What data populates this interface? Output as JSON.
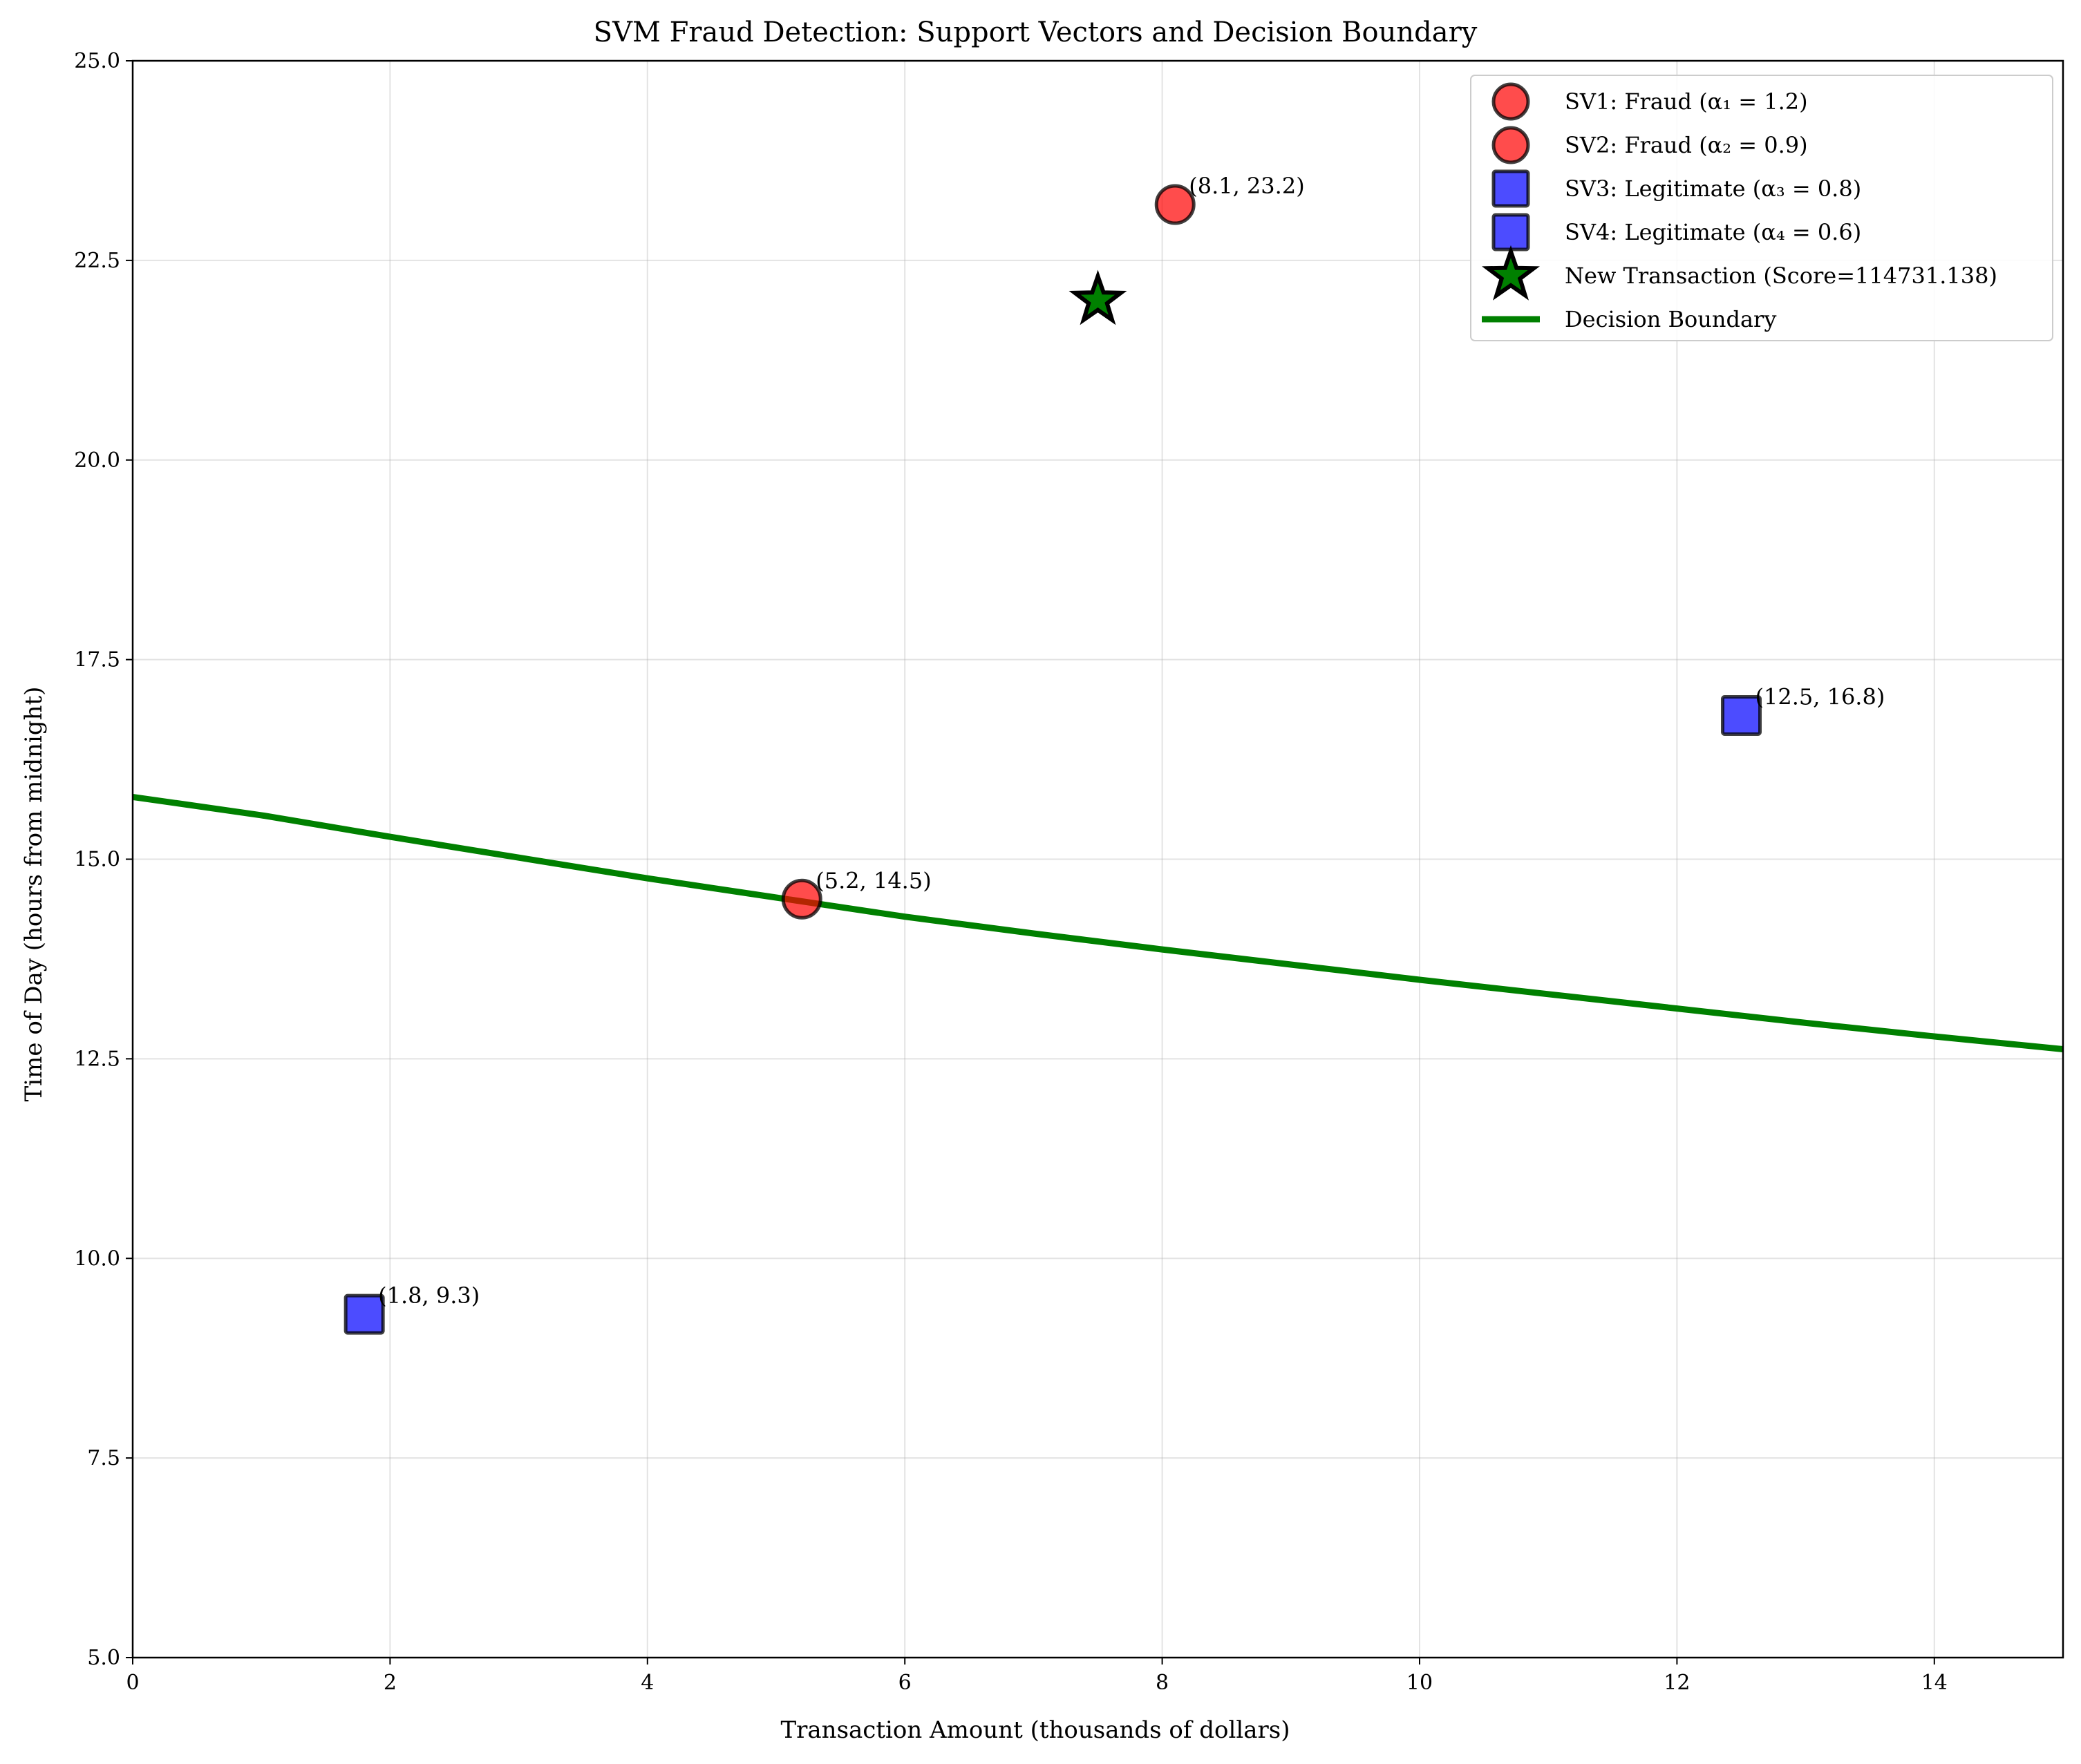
{
  "chart_data": {
    "type": "scatter",
    "title": "SVM Fraud Detection: Support Vectors and Decision Boundary",
    "xlabel": "Transaction Amount (thousands of dollars)",
    "ylabel": "Time of Day (hours from midnight)",
    "xlim": [
      0,
      15
    ],
    "ylim": [
      5,
      25
    ],
    "xticks": [
      0,
      2,
      4,
      6,
      8,
      10,
      12,
      14
    ],
    "xtick_labels": [
      "0",
      "2",
      "4",
      "6",
      "8",
      "10",
      "12",
      "14"
    ],
    "yticks": [
      5,
      7.5,
      10,
      12.5,
      15,
      17.5,
      20,
      22.5,
      25
    ],
    "ytick_labels": [
      "5.0",
      "7.5",
      "10.0",
      "12.5",
      "15.0",
      "17.5",
      "20.0",
      "22.5",
      "25.0"
    ],
    "grid": true,
    "legend_position": "top-right",
    "series": [
      {
        "name": "SV1: Fraud (α₁ = 1.2)",
        "marker": "circle",
        "color": "#ff0000",
        "points": [
          {
            "x": 5.2,
            "y": 14.5,
            "label": "(5.2, 14.5)"
          }
        ]
      },
      {
        "name": "SV2: Fraud (α₂ = 0.9)",
        "marker": "circle",
        "color": "#ff0000",
        "points": [
          {
            "x": 8.1,
            "y": 23.2,
            "label": "(8.1, 23.2)"
          }
        ]
      },
      {
        "name": "SV3: Legitimate (α₃ = 0.8)",
        "marker": "square",
        "color": "#0000ff",
        "points": [
          {
            "x": 12.5,
            "y": 16.8,
            "label": "(12.5, 16.8)"
          }
        ]
      },
      {
        "name": "SV4: Legitimate (α₄ = 0.6)",
        "marker": "square",
        "color": "#0000ff",
        "points": [
          {
            "x": 1.8,
            "y": 9.3,
            "label": "(1.8, 9.3)"
          }
        ]
      },
      {
        "name": "New Transaction (Score=114731.138)",
        "marker": "star",
        "color": "#008000",
        "points": [
          {
            "x": 7.5,
            "y": 22.0
          }
        ]
      }
    ],
    "boundary": {
      "name": "Decision Boundary",
      "color": "#008000",
      "points": [
        {
          "x": 0,
          "y": 15.78
        },
        {
          "x": 1,
          "y": 15.55
        },
        {
          "x": 2,
          "y": 15.28
        },
        {
          "x": 3,
          "y": 15.02
        },
        {
          "x": 4,
          "y": 14.76
        },
        {
          "x": 5,
          "y": 14.52
        },
        {
          "x": 6,
          "y": 14.28
        },
        {
          "x": 7,
          "y": 14.07
        },
        {
          "x": 8,
          "y": 13.87
        },
        {
          "x": 9,
          "y": 13.68
        },
        {
          "x": 10,
          "y": 13.49
        },
        {
          "x": 11,
          "y": 13.31
        },
        {
          "x": 12,
          "y": 13.13
        },
        {
          "x": 13,
          "y": 12.95
        },
        {
          "x": 14,
          "y": 12.78
        },
        {
          "x": 15,
          "y": 12.62
        }
      ]
    }
  }
}
